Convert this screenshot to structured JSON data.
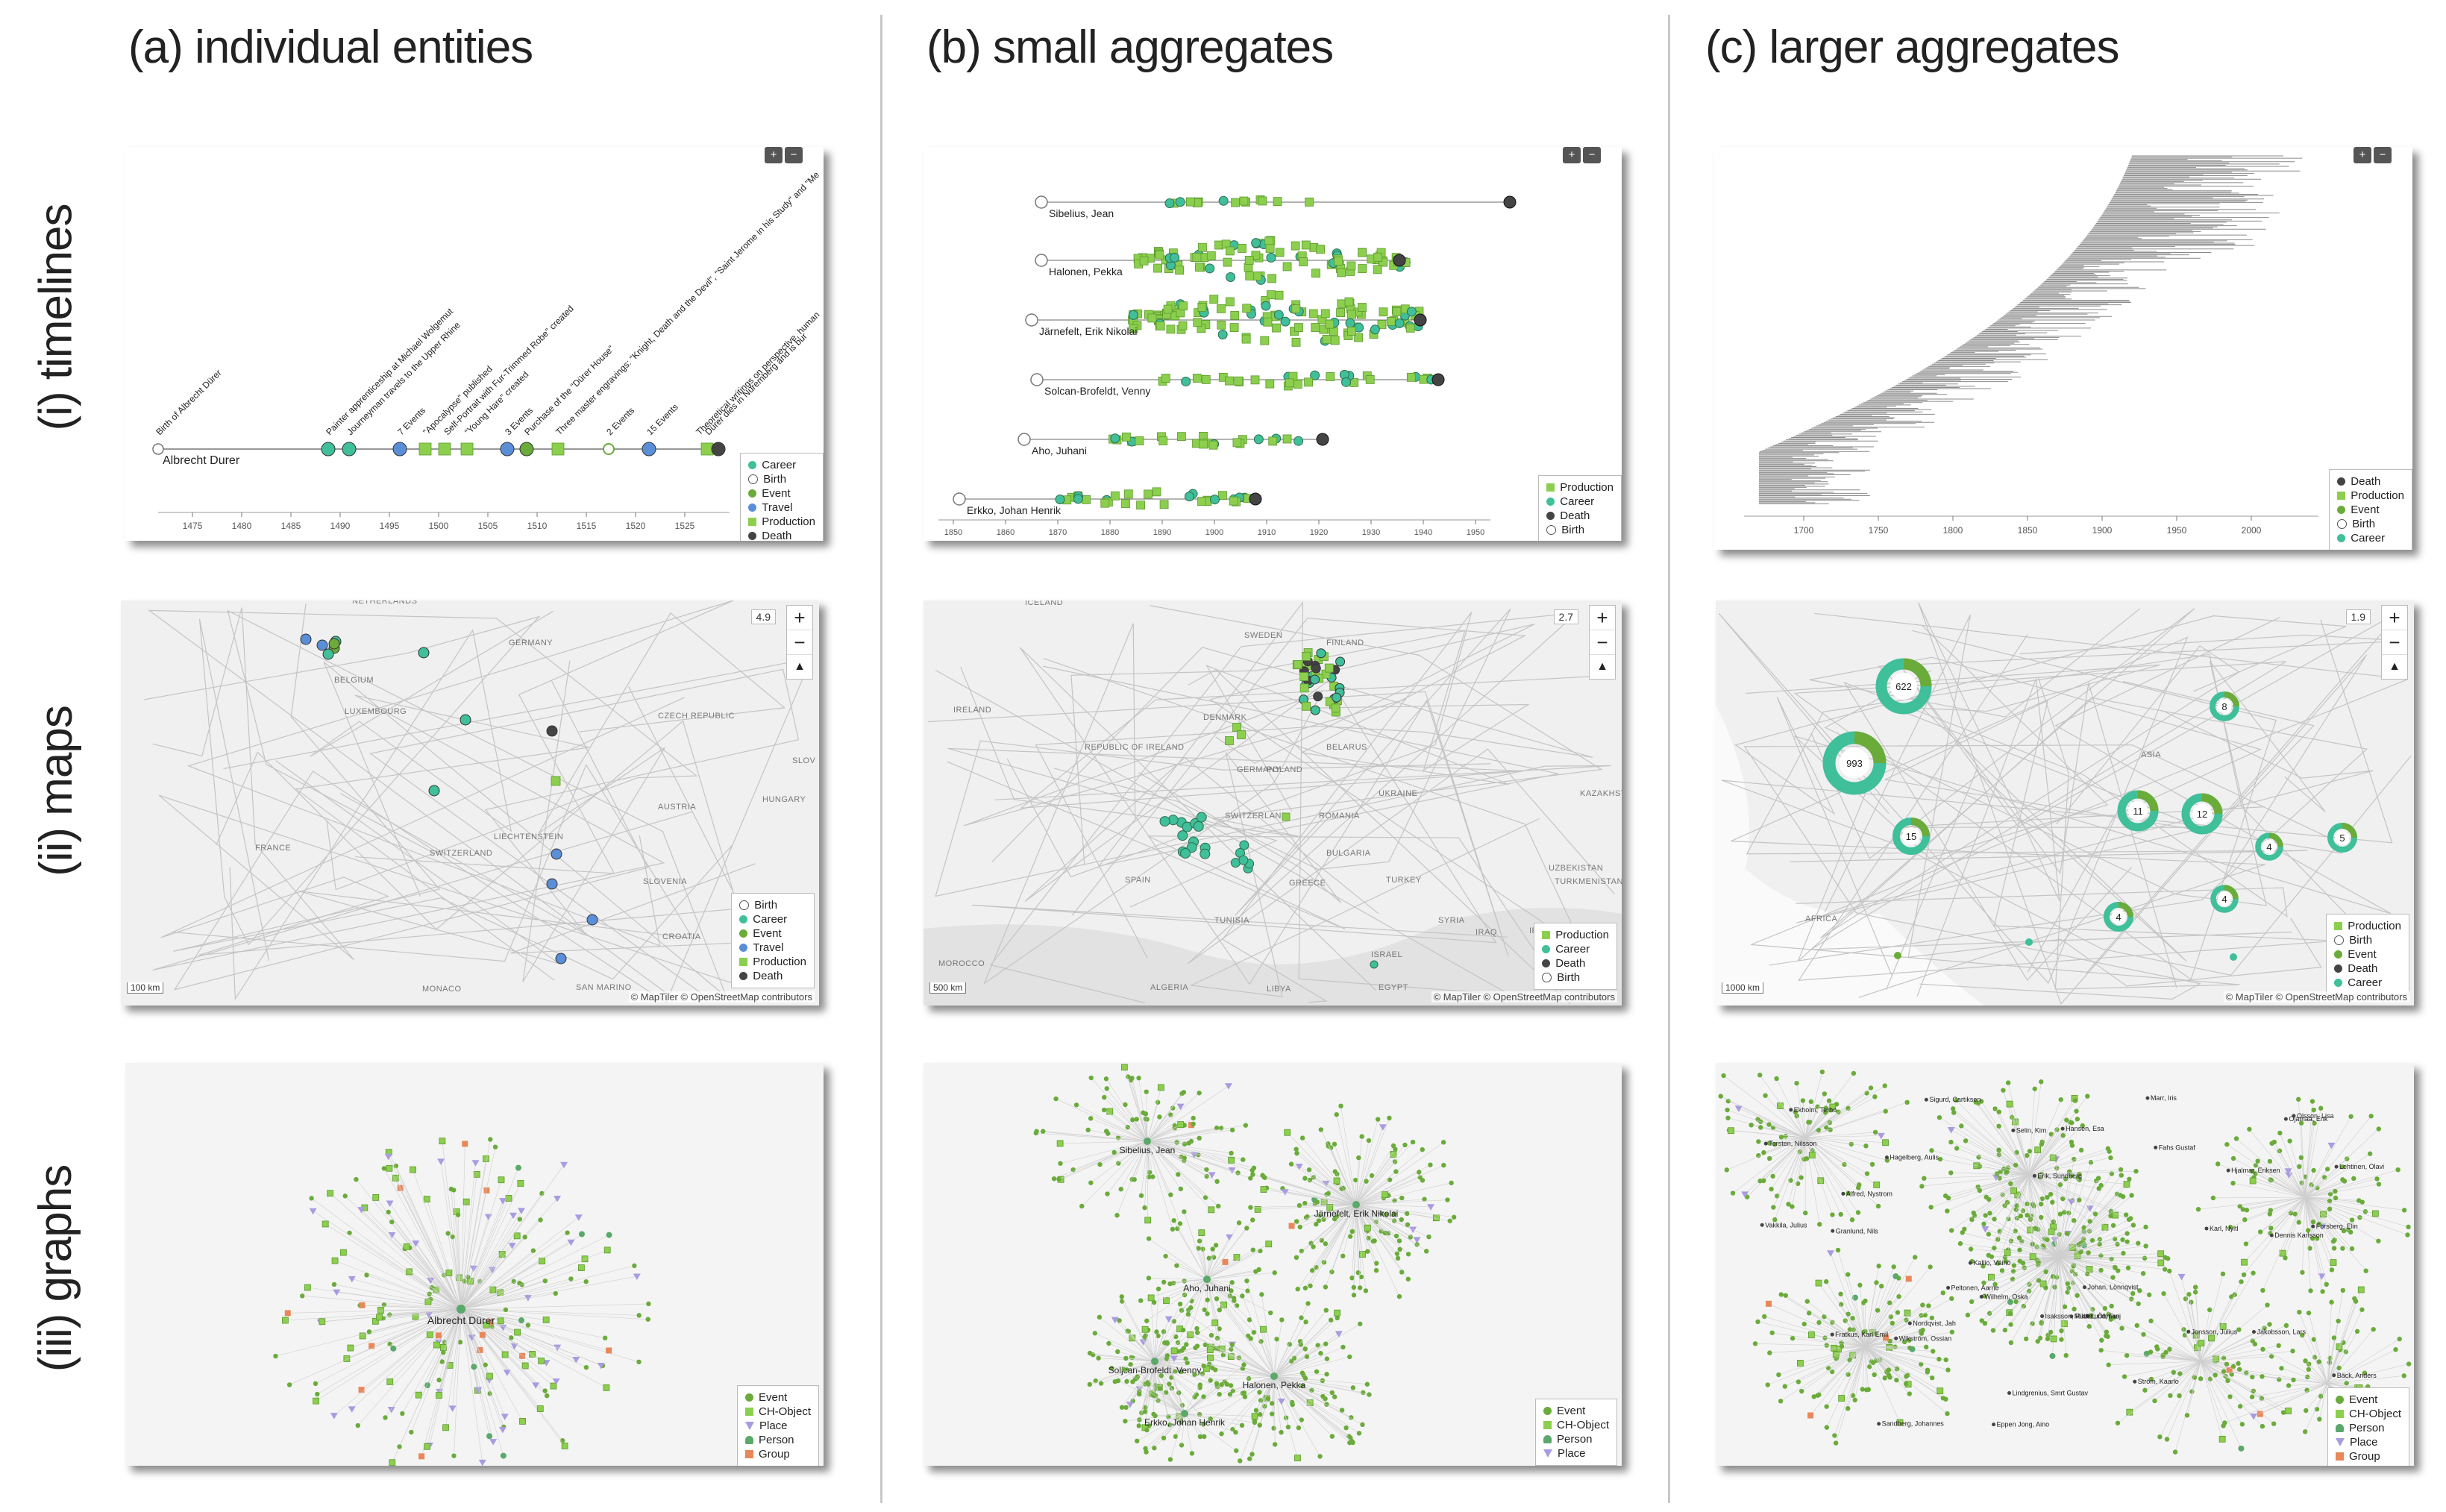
{
  "columns": [
    "(a) individual entities",
    "(b) small aggregates",
    "(c) larger aggregates"
  ],
  "rows": [
    "(i) timelines",
    "(ii) maps",
    "(iii) graphs"
  ],
  "colors": {
    "career": "#3fbf9a",
    "birth": "#ffffff",
    "event": "#6aab3a",
    "travel": "#5a8fd8",
    "production": "#8ccf4e",
    "death": "#444444",
    "place": "#a99be0",
    "group": "#e8885a",
    "person": "#5aa86a"
  },
  "icons": [
    "zoom-in-icon",
    "zoom-out-icon",
    "compass-icon",
    "person-icon",
    "place-triangle-icon"
  ],
  "controls": {
    "plus": "+",
    "minus": "−",
    "compass": "▲"
  },
  "timeline_a": {
    "person": "Albrecht Durer",
    "axis_ticks": [
      "1475",
      "1480",
      "1485",
      "1490",
      "1495",
      "1500",
      "1505",
      "1510",
      "1515",
      "1520",
      "1525"
    ],
    "event_labels": [
      "Birth of Albrecht Dürer",
      "Painter apprenticeship at Michael Wolgemut",
      "Journeyman travels to the Upper Rhine",
      "7 Events",
      "\"Apocalypse\" published",
      "Self-Portrait with Fur-Trimmed Robe\" created",
      "\"Young Hare\" created",
      "3 Events",
      "Purchase of the \"Dürer House\"",
      "Three master engravings: \"Knight, Death and the Devil\", \"Saint Jerome in his Study\" and \"Me",
      "2 Events",
      "15 Events",
      "Theoretical writings on perspective, human",
      "Dürer dies in Nuremberg and is bur"
    ],
    "legend": [
      "Career",
      "Birth",
      "Event",
      "Travel",
      "Production",
      "Death"
    ]
  },
  "timeline_b": {
    "persons": [
      "Sibelius, Jean",
      "Halonen, Pekka",
      "Järnefelt, Erik Nikolai",
      "Solcan-Brofeldt, Venny",
      "Aho, Juhani",
      "Erkko, Johan Henrik"
    ],
    "axis_ticks": [
      "1850",
      "1860",
      "1870",
      "1880",
      "1890",
      "1900",
      "1910",
      "1920",
      "1930",
      "1940",
      "1950"
    ],
    "legend": [
      "Production",
      "Career",
      "Death",
      "Birth"
    ]
  },
  "timeline_c": {
    "axis_ticks": [
      "1700",
      "1750",
      "1800",
      "1850",
      "1900",
      "1950",
      "2000"
    ],
    "legend": [
      "Death",
      "Production",
      "Event",
      "Birth",
      "Career"
    ]
  },
  "map_a": {
    "zoom": "4.9",
    "labels": [
      "NETHERLANDS",
      "GERMANY",
      "BELGIUM",
      "LUXEMBOURG",
      "CZECH REPUBLIC",
      "FRANCE",
      "AUSTRIA",
      "LIECHTENSTEIN",
      "SWITZERLAND",
      "SLOVENIA",
      "CROATIA",
      "MONACO",
      "SAN MARINO",
      "HUNGARY",
      "SLOV"
    ],
    "scale": "100 km",
    "attribution": "© MapTiler © OpenStreetMap contributors",
    "legend": [
      "Birth",
      "Career",
      "Event",
      "Travel",
      "Production",
      "Death"
    ]
  },
  "map_b": {
    "zoom": "2.7",
    "labels": [
      "ICELAND",
      "SWEDEN",
      "FINLAND",
      "IRELAND",
      "DENMARK",
      "REPUBLIC OF IRELAND",
      "BELARUS",
      "POLAND",
      "GERMANY",
      "UKRAINE",
      "KAZAKHST",
      "SWITZERLAND",
      "ROMANIA",
      "BULGARIA",
      "UZBEKISTAN",
      "SPAIN",
      "GREECE",
      "TURKEY",
      "TURKMENISTAN",
      "TUNISIA",
      "SYRIA",
      "IRAQ",
      "IRAN",
      "MOROCCO",
      "ALGERIA",
      "LIBYA",
      "EGYPT",
      "ISRAEL"
    ],
    "scale": "500 km",
    "attribution": "© MapTiler © OpenStreetMap contributors",
    "legend": [
      "Production",
      "Career",
      "Death",
      "Birth"
    ]
  },
  "map_c": {
    "zoom": "1.9",
    "labels": [
      "ASIA",
      "AFRICA"
    ],
    "clusters": [
      "622",
      "993",
      "15",
      "11",
      "12",
      "8",
      "4",
      "5",
      "4",
      "4"
    ],
    "scale": "1000 km",
    "attribution": "© MapTiler © OpenStreetMap contributors",
    "legend": [
      "Production",
      "Birth",
      "Event",
      "Death",
      "Career"
    ]
  },
  "graph_a": {
    "center": "Albrecht Dürer",
    "legend": [
      "Event",
      "CH-Object",
      "Place",
      "Person",
      "Group"
    ]
  },
  "graph_b": {
    "nodes": [
      "Sibelius, Jean",
      "Järnefelt, Erik Nikolai",
      "Aho, Juhani",
      "Soljcan-Brofeldt, Venny",
      "Halonen, Pekka",
      "Erkko, Johan Henrik"
    ],
    "legend": [
      "Event",
      "CH-Object",
      "Person",
      "Place"
    ]
  },
  "graph_c": {
    "labels": [
      "Eppen Jong, Aino",
      "Sigurd, Cartiksen",
      "Lindgrenius, Smrt Gustav",
      "Karl, Nyltl",
      "Sandberg, Johannes",
      "Wilhelm, Oska",
      "Fratkus, Karl Emil",
      "Johan, Lönnqvist",
      "Dennis Karlsson",
      "Hjalmar, Eriksen",
      "Fahs Gustaf",
      "Nordqvist, Jah",
      "Alfred, Nystrom",
      "Ojamaa, Erik",
      "Jakobsson, Lars",
      "Erik, Sundberg",
      "Lund, Frej",
      "Bäck, Anders",
      "Granlund, Nils",
      "Lehtinen, Olavi",
      "Vakkila, Julius",
      "Selin, Kim",
      "Hansen, Esa",
      "Wikström, Ossian",
      "Jonsson, Julius",
      "Isaksson, Ruth",
      "Torsten, Nilsson",
      "Kallio, Väinö",
      "Hagelberg, Aulis",
      "Marr, Iris",
      "Ström, Kaarlo",
      "Ekholm, Terho",
      "Mikael, Öhman",
      "Olsson, Lisa",
      "Peltonen, Aarne",
      "Forsberg, Elin"
    ],
    "legend": [
      "Event",
      "CH-Object",
      "Person",
      "Place",
      "Group"
    ]
  }
}
